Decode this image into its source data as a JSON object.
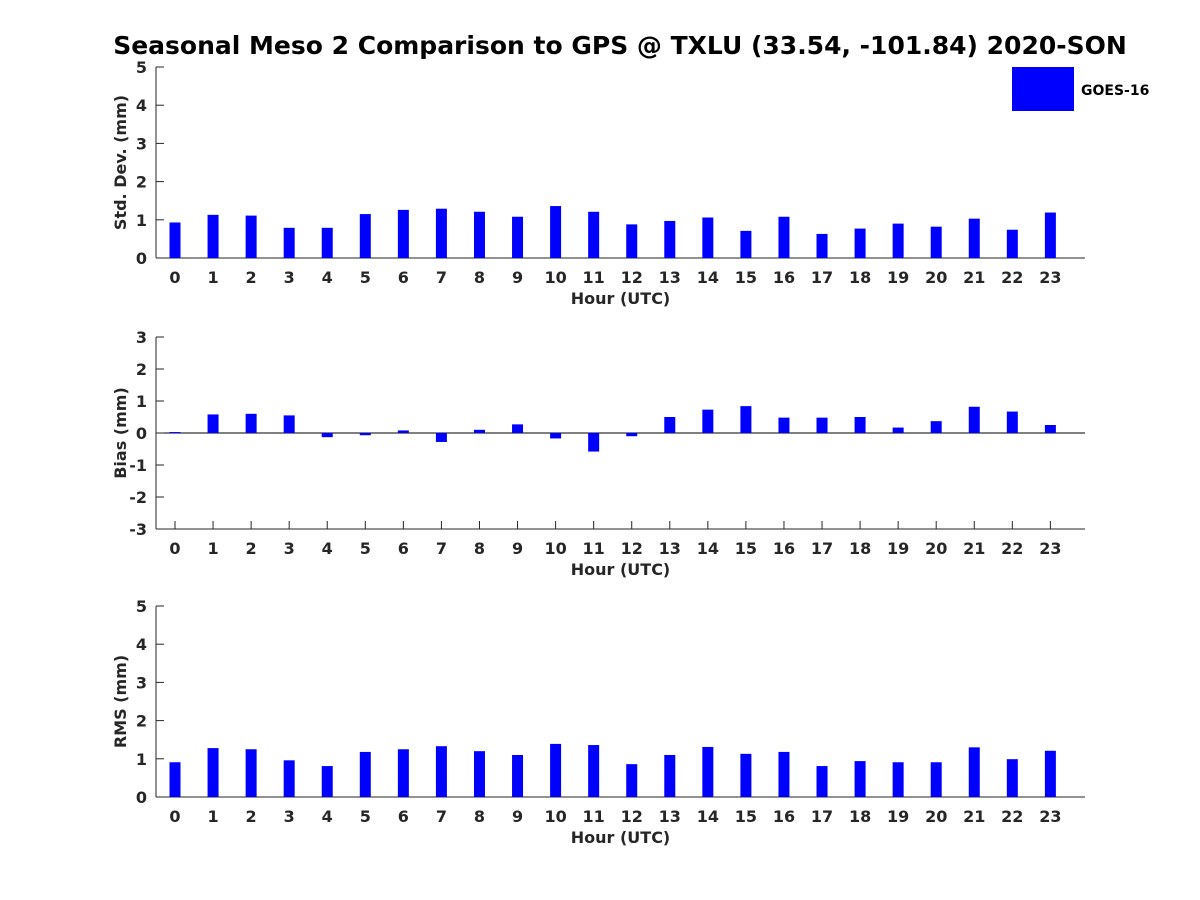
{
  "chart_data": {
    "title": "Seasonal Meso 2 Comparison to GPS @ TXLU (33.54, -101.84) 2020-SON",
    "legend": {
      "label": "GOES-16",
      "placement": "top-right"
    },
    "bar_color": "#0000ff",
    "panels": [
      {
        "type": "bar",
        "name": "std-dev",
        "ylabel": "Std. Dev. (mm)",
        "xlabel": "Hour (UTC)",
        "ylim": [
          0,
          5
        ],
        "yticks": [
          "0",
          "1",
          "2",
          "3",
          "4",
          "5"
        ],
        "categories": [
          "0",
          "1",
          "2",
          "3",
          "4",
          "5",
          "6",
          "7",
          "8",
          "9",
          "10",
          "11",
          "12",
          "13",
          "14",
          "15",
          "16",
          "17",
          "18",
          "19",
          "20",
          "21",
          "22",
          "23"
        ],
        "values": [
          0.93,
          1.13,
          1.11,
          0.79,
          0.79,
          1.15,
          1.26,
          1.29,
          1.21,
          1.08,
          1.36,
          1.21,
          0.88,
          0.97,
          1.06,
          0.71,
          1.08,
          0.63,
          0.77,
          0.9,
          0.82,
          1.03,
          0.74,
          1.19
        ]
      },
      {
        "type": "bar",
        "name": "bias",
        "ylabel": "Bias (mm)",
        "xlabel": "Hour (UTC)",
        "ylim": [
          -3,
          3
        ],
        "yticks": [
          "-3",
          "-2",
          "-1",
          "0",
          "1",
          "2",
          "3"
        ],
        "categories": [
          "0",
          "1",
          "2",
          "3",
          "4",
          "5",
          "6",
          "7",
          "8",
          "9",
          "10",
          "11",
          "12",
          "13",
          "14",
          "15",
          "16",
          "17",
          "18",
          "19",
          "20",
          "21",
          "22",
          "23"
        ],
        "values": [
          0.03,
          0.58,
          0.6,
          0.55,
          -0.13,
          -0.07,
          0.08,
          -0.28,
          0.1,
          0.27,
          -0.17,
          -0.58,
          -0.1,
          0.5,
          0.73,
          0.84,
          0.48,
          0.48,
          0.5,
          0.17,
          0.37,
          0.82,
          0.67,
          0.25
        ]
      },
      {
        "type": "bar",
        "name": "rms",
        "ylabel": "RMS (mm)",
        "xlabel": "Hour (UTC)",
        "ylim": [
          0,
          5
        ],
        "yticks": [
          "0",
          "1",
          "2",
          "3",
          "4",
          "5"
        ],
        "categories": [
          "0",
          "1",
          "2",
          "3",
          "4",
          "5",
          "6",
          "7",
          "8",
          "9",
          "10",
          "11",
          "12",
          "13",
          "14",
          "15",
          "16",
          "17",
          "18",
          "19",
          "20",
          "21",
          "22",
          "23"
        ],
        "values": [
          0.91,
          1.28,
          1.25,
          0.96,
          0.81,
          1.18,
          1.25,
          1.33,
          1.2,
          1.1,
          1.39,
          1.36,
          0.86,
          1.1,
          1.31,
          1.13,
          1.18,
          0.81,
          0.94,
          0.91,
          0.91,
          1.3,
          0.99,
          1.21
        ]
      }
    ]
  }
}
